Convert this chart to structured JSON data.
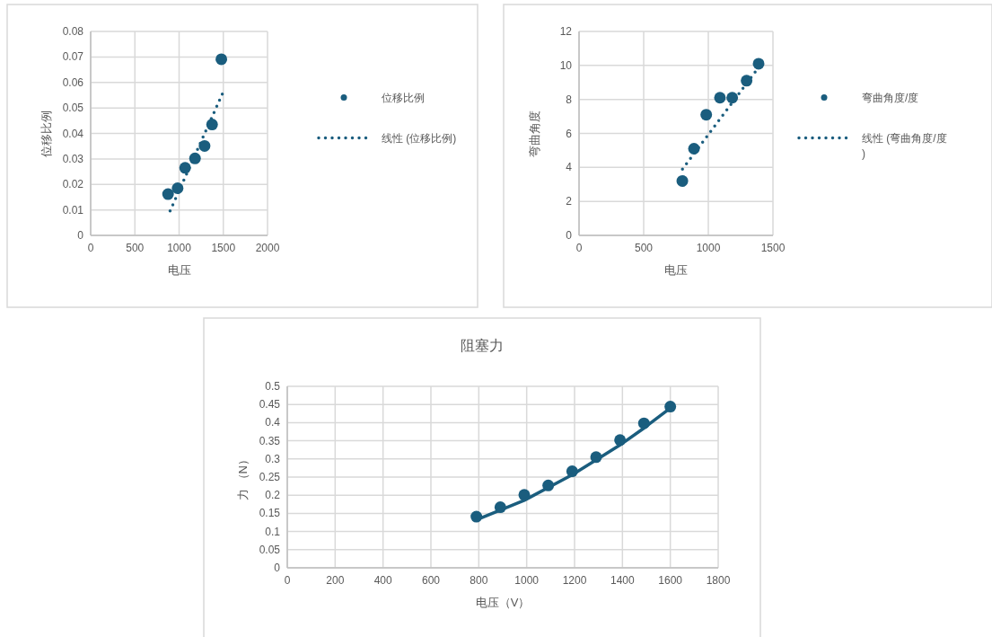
{
  "chart_data": [
    {
      "type": "scatter",
      "xlabel": "电压",
      "ylabel": "位移比例",
      "xlim": [
        0,
        2000
      ],
      "xticks": [
        0,
        500,
        1000,
        1500,
        2000
      ],
      "ylim": [
        0,
        0.08
      ],
      "yticks": [
        0,
        0.01,
        0.02,
        0.03,
        0.04,
        0.05,
        0.06,
        0.07,
        0.08
      ],
      "grid": true,
      "legend": "right",
      "marker": "circle",
      "series": [
        {
          "name": "位移比例",
          "color": "#1a5d7e",
          "x": [
            875,
            983,
            1068,
            1180,
            1288,
            1373,
            1478
          ],
          "values": [
            0.0162,
            0.0185,
            0.0265,
            0.0302,
            0.0351,
            0.0435,
            0.0691
          ]
        },
        {
          "name": "线性 (位移比例)",
          "type": "line",
          "line_style": "dotted",
          "marker": "none",
          "color": "#1a5d7e",
          "x": [
            898,
            1498
          ],
          "values": [
            0.0096,
            0.0562
          ]
        }
      ]
    },
    {
      "type": "scatter",
      "xlabel": "电压",
      "ylabel": "弯曲角度",
      "xlim": [
        0,
        1500
      ],
      "xticks": [
        0,
        500,
        1000,
        1500
      ],
      "ylim": [
        0,
        12
      ],
      "yticks": [
        0,
        2,
        4,
        6,
        8,
        10,
        12
      ],
      "grid": true,
      "legend": "right",
      "marker": "circle",
      "series": [
        {
          "name": "弯曲角度/度",
          "color": "#1a5d7e",
          "x": [
            799,
            889,
            984,
            1090,
            1185,
            1296,
            1389
          ],
          "values": [
            3.2,
            5.1,
            7.1,
            8.1,
            8.1,
            9.1,
            10.1
          ]
        },
        {
          "name": "线性 (弯曲角度/度)",
          "type": "line",
          "line_style": "dotted",
          "marker": "none",
          "color": "#1a5d7e",
          "x": [
            800,
            1390
          ],
          "values": [
            3.9,
            9.9
          ]
        }
      ]
    },
    {
      "type": "scatter",
      "title": "阻塞力",
      "xlabel": "电压（V）",
      "ylabel": "力 （N）",
      "xlim": [
        0,
        1800
      ],
      "xticks": [
        0,
        200,
        400,
        600,
        800,
        1000,
        1200,
        1400,
        1600,
        1800
      ],
      "ylim": [
        0,
        0.5
      ],
      "yticks": [
        0,
        0.05,
        0.1,
        0.15,
        0.2,
        0.25,
        0.3,
        0.35,
        0.4,
        0.45,
        0.5
      ],
      "grid": true,
      "marker": "circle",
      "series": [
        {
          "color": "#1a5d7e",
          "x": [
            790,
            890,
            990,
            1090,
            1190,
            1290,
            1390,
            1490,
            1600
          ],
          "values": [
            0.141,
            0.167,
            0.201,
            0.227,
            0.266,
            0.305,
            0.352,
            0.398,
            0.444
          ]
        },
        {
          "type": "line",
          "line_style": "solid",
          "marker": "none",
          "color": "#1a5d7e",
          "x": [
            790,
            990,
            1190,
            1387,
            1490,
            1598
          ],
          "values": [
            0.132,
            0.186,
            0.256,
            0.337,
            0.385,
            0.439
          ]
        }
      ]
    }
  ]
}
